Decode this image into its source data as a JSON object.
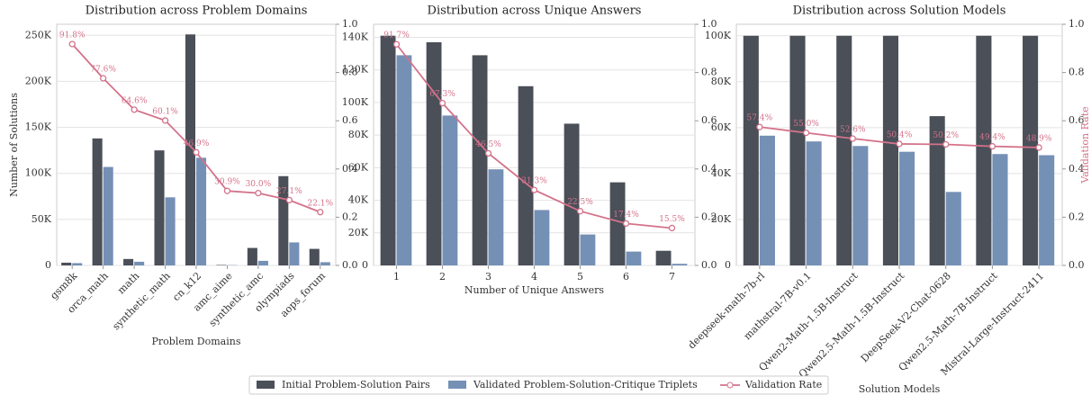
{
  "legend": [
    {
      "name": "Initial Problem-Solution Pairs",
      "color": "#4a4f58"
    },
    {
      "name": "Validated Problem-Solution-Critique Triplets",
      "color": "#7590b5"
    },
    {
      "name": "Validation Rate",
      "color": "#d4728a"
    }
  ],
  "chart_data": [
    {
      "type": "bar",
      "title": "Distribution across Problem Domains",
      "xlabel": "Problem Domains",
      "ylabel": "Number of Solutions",
      "categories": [
        "gsm8k",
        "orca_math",
        "math",
        "synthetic_math",
        "cn_k12",
        "amc_aime",
        "synthetic_amc",
        "olympiads",
        "aops_forum"
      ],
      "rotate_labels": true,
      "series": [
        {
          "values": [
            3000,
            138000,
            7000,
            125000,
            251000,
            500,
            19000,
            97000,
            18000
          ]
        },
        {
          "values": [
            2500,
            107000,
            4000,
            74000,
            117000,
            300,
            5000,
            25000,
            3500
          ]
        },
        {
          "axis": "y2",
          "values": [
            0.918,
            0.776,
            0.646,
            0.601,
            0.469,
            0.309,
            0.3,
            0.271,
            0.221
          ],
          "value_labels": [
            "91.8%",
            "77.6%",
            "64.6%",
            "60.1%",
            "46.9%",
            "30.9%",
            "30.0%",
            "27.1%",
            "22.1%"
          ]
        }
      ],
      "ylim": [
        0,
        262000
      ],
      "yticks": [
        0,
        {
          "value": 50000,
          "label": "50K"
        },
        {
          "value": 100000,
          "label": "100K"
        },
        {
          "value": 150000,
          "label": "150K"
        },
        {
          "value": 200000,
          "label": "200K"
        },
        {
          "value": 250000,
          "label": "250K"
        }
      ],
      "y2lim": [
        0,
        1
      ],
      "y2ticks": [
        {
          "value": 0,
          "label": "0.0"
        },
        0.2,
        0.4,
        0.6,
        0.8,
        {
          "value": 1,
          "label": "1.0"
        }
      ],
      "grid": true
    },
    {
      "type": "bar",
      "title": "Distribution across Unique Answers",
      "xlabel": "Number of Unique Answers",
      "categories": [
        "1",
        "2",
        "3",
        "4",
        "5",
        "6",
        "7"
      ],
      "rotate_labels": false,
      "series": [
        {
          "values": [
            141000,
            137000,
            129000,
            110000,
            87000,
            51000,
            9000
          ]
        },
        {
          "values": [
            129000,
            92000,
            59000,
            34000,
            19000,
            8500,
            1000
          ]
        },
        {
          "axis": "y2",
          "values": [
            0.917,
            0.673,
            0.465,
            0.313,
            0.225,
            0.174,
            0.155
          ],
          "value_labels": [
            "91.7%",
            "67.3%",
            "46.5%",
            "31.3%",
            "22.5%",
            "17.4%",
            "15.5%"
          ]
        }
      ],
      "ylim": [
        0,
        148000
      ],
      "yticks": [
        0,
        {
          "value": 20000,
          "label": "20K"
        },
        {
          "value": 40000,
          "label": "40K"
        },
        {
          "value": 60000,
          "label": "60K"
        },
        {
          "value": 80000,
          "label": "80K"
        },
        {
          "value": 100000,
          "label": "100K"
        },
        {
          "value": 120000,
          "label": "120K"
        },
        {
          "value": 140000,
          "label": "140K"
        }
      ],
      "y2lim": [
        0,
        1
      ],
      "y2ticks": [
        {
          "value": 0,
          "label": "0.0"
        },
        0.2,
        0.4,
        0.6,
        0.8,
        {
          "value": 1,
          "label": "1.0"
        }
      ],
      "grid": true
    },
    {
      "type": "bar",
      "title": "Distribution across Solution Models",
      "xlabel": "Solution Models",
      "y2label": "Validation Rate",
      "categories": [
        "deepseek-math-7b-rl",
        "mathstral-7B-v0.1",
        "Qwen2-Math-1.5B-Instruct",
        "Qwen2.5-Math-1.5B-Instruct",
        "DeepSeek-V2-Chat-0628",
        "Qwen2.5-Math-7B-Instruct",
        "Mistral-Large-Instruct-2411"
      ],
      "rotate_labels": true,
      "series": [
        {
          "values": [
            100000,
            100000,
            100000,
            100000,
            65000,
            100000,
            100000
          ]
        },
        {
          "values": [
            56500,
            54000,
            52000,
            49500,
            32000,
            48500,
            48000
          ]
        },
        {
          "axis": "y2",
          "values": [
            0.574,
            0.55,
            0.526,
            0.504,
            0.502,
            0.494,
            0.489
          ],
          "value_labels": [
            "57.4%",
            "55.0%",
            "52.6%",
            "50.4%",
            "50.2%",
            "49.4%",
            "48.9%"
          ]
        }
      ],
      "ylim": [
        0,
        105000
      ],
      "yticks": [
        0,
        {
          "value": 20000,
          "label": "20K"
        },
        {
          "value": 40000,
          "label": "40K"
        },
        {
          "value": 60000,
          "label": "60K"
        },
        {
          "value": 80000,
          "label": "80K"
        },
        {
          "value": 100000,
          "label": "100K"
        }
      ],
      "y2lim": [
        0,
        1
      ],
      "y2ticks": [
        {
          "value": 0,
          "label": "0.0"
        },
        0.2,
        0.4,
        0.6,
        0.8,
        {
          "value": 1,
          "label": "1.0"
        }
      ],
      "grid": true
    }
  ]
}
